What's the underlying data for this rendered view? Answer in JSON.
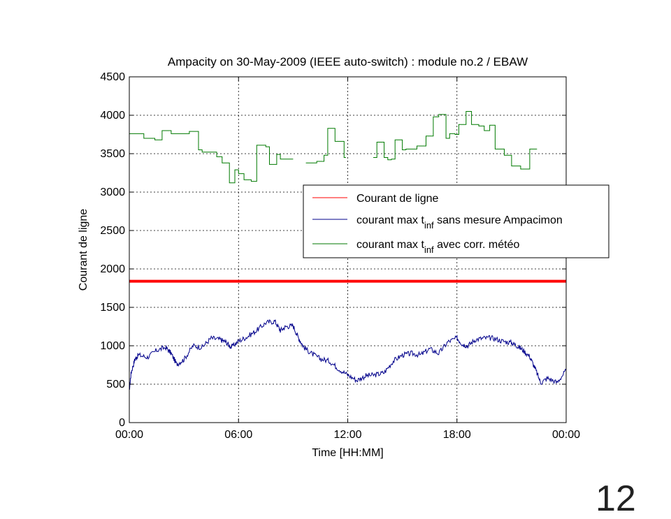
{
  "slide_number": "12",
  "chart_data": {
    "type": "line",
    "title": "Ampacity on 30-May-2009 (IEEE auto-switch) : module no.2 / EBAW",
    "xlabel": "Time [HH:MM]",
    "ylabel": "Courant de ligne",
    "xlim": [
      0,
      24
    ],
    "ylim": [
      0,
      4500
    ],
    "x_ticks": [
      0,
      6,
      12,
      18,
      24
    ],
    "x_tick_labels": [
      "00:00",
      "06:00",
      "12:00",
      "18:00",
      "00:00"
    ],
    "y_ticks": [
      0,
      500,
      1000,
      1500,
      2000,
      2500,
      3000,
      3500,
      4000,
      4500
    ],
    "y_tick_labels": [
      "0",
      "500",
      "1000",
      "1500",
      "2000",
      "2500",
      "3000",
      "3500",
      "4000",
      "4500"
    ],
    "grid": true,
    "legend_position": "right",
    "series": [
      {
        "name": "Courant de ligne",
        "color": "#ff0000",
        "x": [
          0,
          24
        ],
        "y": [
          1840,
          1840
        ]
      },
      {
        "name": "courant max t_inf sans mesure Ampacimon",
        "legend_label": "courant max t",
        "legend_sub": "inf",
        "legend_suffix": " sans mesure Ampacimon",
        "color": "#00008b",
        "x": [
          0,
          0.1,
          0.3,
          0.5,
          1.0,
          1.5,
          2.0,
          2.3,
          2.6,
          3.0,
          3.5,
          4.0,
          4.5,
          5.0,
          5.3,
          5.6,
          6.0,
          6.5,
          7.0,
          7.5,
          8.0,
          8.3,
          8.6,
          9.0,
          9.3,
          9.6,
          10.0,
          10.5,
          11.0,
          11.5,
          12.0,
          12.5,
          13.0,
          13.5,
          14.0,
          14.5,
          15.0,
          15.5,
          16.0,
          16.5,
          17.0,
          17.5,
          18.0,
          18.3,
          18.6,
          19.0,
          19.5,
          20.0,
          20.5,
          21.0,
          21.3,
          21.6,
          22.0,
          22.3,
          22.6,
          23.0,
          23.5,
          24.0
        ],
        "y": [
          420,
          650,
          820,
          880,
          850,
          940,
          980,
          900,
          760,
          820,
          1000,
          980,
          1100,
          1080,
          1050,
          980,
          1060,
          1120,
          1200,
          1300,
          1320,
          1200,
          1250,
          1260,
          1100,
          980,
          900,
          830,
          800,
          700,
          620,
          550,
          610,
          620,
          650,
          800,
          880,
          900,
          880,
          960,
          900,
          1050,
          1100,
          1020,
          1000,
          1080,
          1100,
          1100,
          1060,
          1040,
          1000,
          950,
          860,
          700,
          520,
          580,
          520,
          680
        ]
      },
      {
        "name": "courant max t_inf avec corr. météo",
        "legend_label": "courant max t",
        "legend_sub": "inf",
        "legend_suffix": " avec corr. météo",
        "color": "#007a00",
        "segments": [
          {
            "x": [
              0,
              0.8,
              0.8,
              1.4,
              1.4,
              1.8,
              1.8,
              2.3,
              2.3,
              3.3,
              3.3,
              3.8,
              3.8,
              4.0,
              4.0,
              4.8,
              4.8,
              5.1,
              5.1,
              5.5,
              5.5,
              5.8,
              5.8,
              6.0,
              6.0,
              6.3,
              6.3,
              6.7,
              6.7,
              7.0,
              7.0,
              7.5,
              7.5,
              7.7,
              7.7,
              8.1,
              8.1,
              8.3,
              8.3,
              8.7,
              8.7,
              9.0
            ],
            "y": [
              3760,
              3760,
              3700,
              3700,
              3680,
              3680,
              3800,
              3800,
              3760,
              3760,
              3790,
              3790,
              3550,
              3550,
              3520,
              3520,
              3460,
              3460,
              3380,
              3380,
              3120,
              3120,
              3290,
              3290,
              3240,
              3240,
              3160,
              3160,
              3140,
              3140,
              3610,
              3610,
              3590,
              3590,
              3360,
              3360,
              3490,
              3490,
              3430,
              3430,
              3430,
              3430
            ]
          },
          {
            "x": [
              9.7,
              10.3,
              10.3,
              10.7,
              10.7,
              10.9,
              10.9,
              11.3,
              11.3,
              11.8,
              11.8,
              11.9
            ],
            "y": [
              3380,
              3380,
              3400,
              3400,
              3480,
              3480,
              3830,
              3830,
              3660,
              3660,
              3450,
              3450
            ]
          },
          {
            "x": [
              13.4,
              13.6,
              13.6,
              14.0,
              14.0,
              14.2,
              14.2,
              14.4,
              14.4,
              14.6,
              14.6,
              15.0,
              15.0,
              15.2,
              15.2,
              15.8,
              15.8,
              16.3,
              16.3,
              16.7,
              16.7,
              17.0,
              17.0,
              17.4,
              17.4,
              17.6,
              17.6,
              17.9,
              17.9,
              18.1,
              18.1,
              18.5,
              18.5,
              18.8,
              18.8,
              19.2,
              19.2,
              19.5,
              19.5,
              19.8,
              19.8,
              20.1,
              20.1,
              20.6,
              20.6,
              21.0,
              21.0,
              21.5,
              21.5,
              22.0,
              22.0,
              22.3,
              22.3,
              22.4
            ],
            "y": [
              3450,
              3450,
              3650,
              3650,
              3450,
              3450,
              3420,
              3420,
              3430,
              3430,
              3680,
              3680,
              3550,
              3550,
              3560,
              3560,
              3600,
              3600,
              3730,
              3730,
              3980,
              3980,
              4010,
              4010,
              3700,
              3700,
              3760,
              3760,
              3750,
              3750,
              3880,
              3880,
              4050,
              4050,
              3880,
              3880,
              3860,
              3860,
              3800,
              3800,
              3870,
              3870,
              3560,
              3560,
              3480,
              3480,
              3340,
              3340,
              3300,
              3300,
              3560,
              3560,
              3560,
              3560
            ]
          }
        ]
      }
    ]
  }
}
